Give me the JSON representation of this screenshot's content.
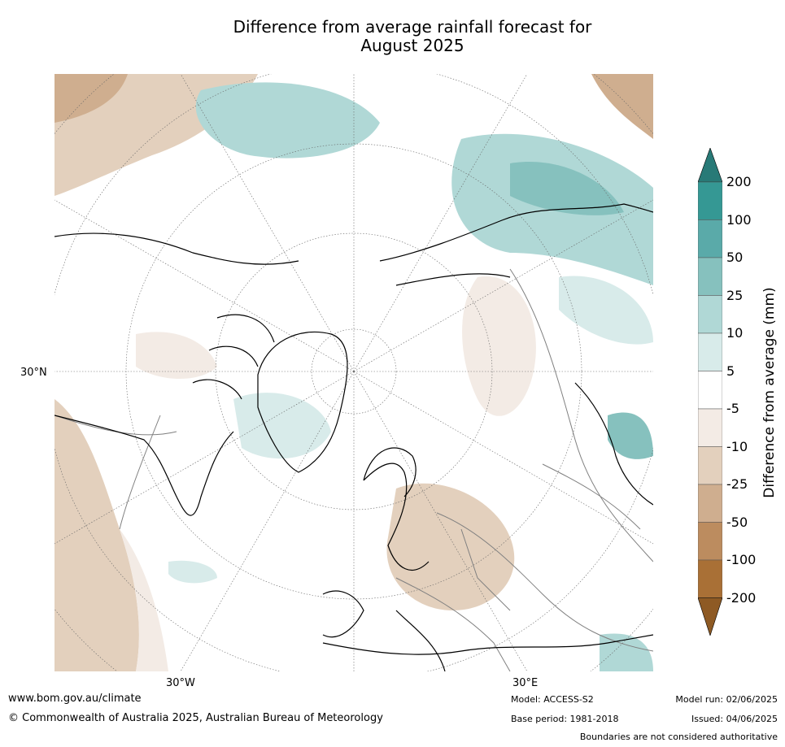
{
  "title_line1": "Difference from average rainfall forecast for",
  "title_line2": "August 2025",
  "map": {
    "projection": "north-polar-stereographic",
    "lat_labels": [
      "30°N"
    ],
    "lon_labels": [
      "30°W",
      "30°E"
    ],
    "legend_placement": "right",
    "boundaries_color": "#808080",
    "coastline_color": "#000000"
  },
  "colorbar": {
    "title": "Difference from average (mm)",
    "ticks": [
      "200",
      "100",
      "50",
      "25",
      "10",
      "5",
      "-5",
      "-10",
      "-25",
      "-50",
      "-100",
      "-200"
    ],
    "colors_top_to_bottom": [
      "#287a77",
      "#359894",
      "#5aaaa9",
      "#86c1be",
      "#b0d8d6",
      "#d8ebea",
      "#ffffff",
      "#f3ebe5",
      "#e3d0bd",
      "#cfae8f",
      "#bc8c5f",
      "#a97036",
      "#8e5a24"
    ]
  },
  "footer": {
    "url": "www.bom.gov.au/climate",
    "copyright": "© Commonwealth of Australia 2025, Australian Bureau of Meteorology",
    "model": "Model: ACCESS-S2",
    "base_period": "Base period: 1981-2018",
    "model_run": "Model run: 02/06/2025",
    "issued": "Issued: 04/06/2025",
    "disclaimer": "Boundaries are not considered authoritative"
  }
}
